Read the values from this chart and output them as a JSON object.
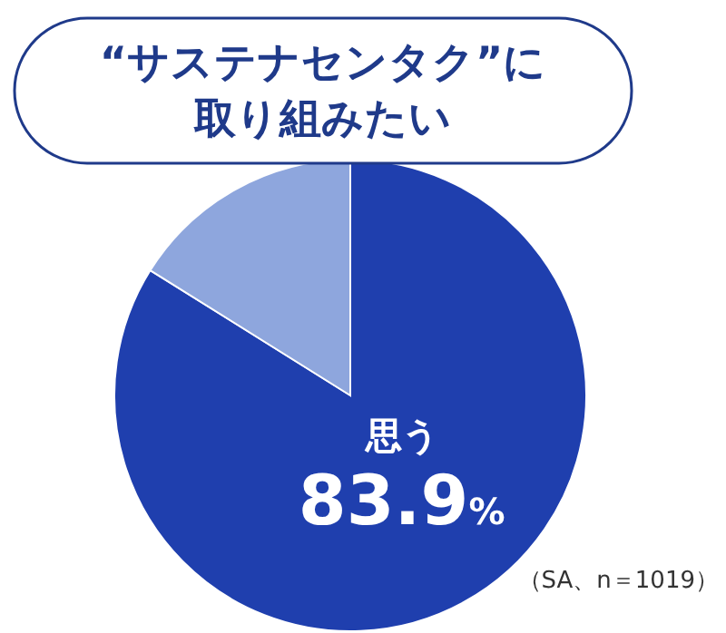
{
  "chart_data": {
    "type": "pie",
    "title": "“サステナセンタク”に取り組みたい",
    "categories": [
      "思う",
      null
    ],
    "values": [
      83.9,
      16.1
    ],
    "colors": [
      "#1f3fae",
      "#8ea6dd"
    ],
    "value_labels": [
      "83.9%",
      null
    ],
    "annotations": [
      "（SA、n＝1019）"
    ]
  }
}
